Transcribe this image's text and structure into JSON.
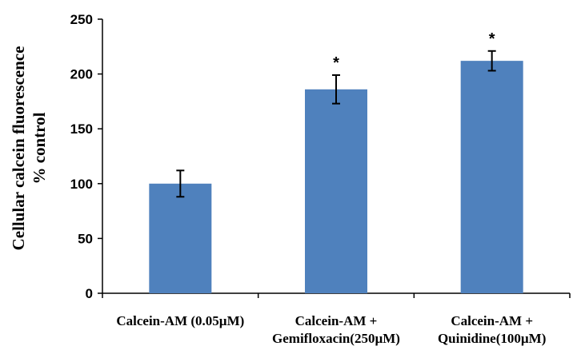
{
  "chart_data": {
    "type": "bar",
    "categories": [
      [
        "Calcein-AM (0.05µM)"
      ],
      [
        "Calcein-AM +",
        "Gemifloxacin(250µM)"
      ],
      [
        "Calcein-AM +",
        "Quinidine(100µM)"
      ]
    ],
    "values": [
      100,
      186,
      212
    ],
    "errors": [
      12,
      13,
      9
    ],
    "significance": [
      "",
      "*",
      "*"
    ],
    "ylabel": [
      "Cellular calcein fluorescence",
      "% control"
    ],
    "xlabel": "",
    "ylim": [
      0,
      250
    ],
    "yticks": [
      0,
      50,
      100,
      150,
      200,
      250
    ],
    "grid": false,
    "legend": "none",
    "colors": {
      "bar": "#4f81bd",
      "axis": "#000000",
      "error_bar": "#000000"
    }
  }
}
